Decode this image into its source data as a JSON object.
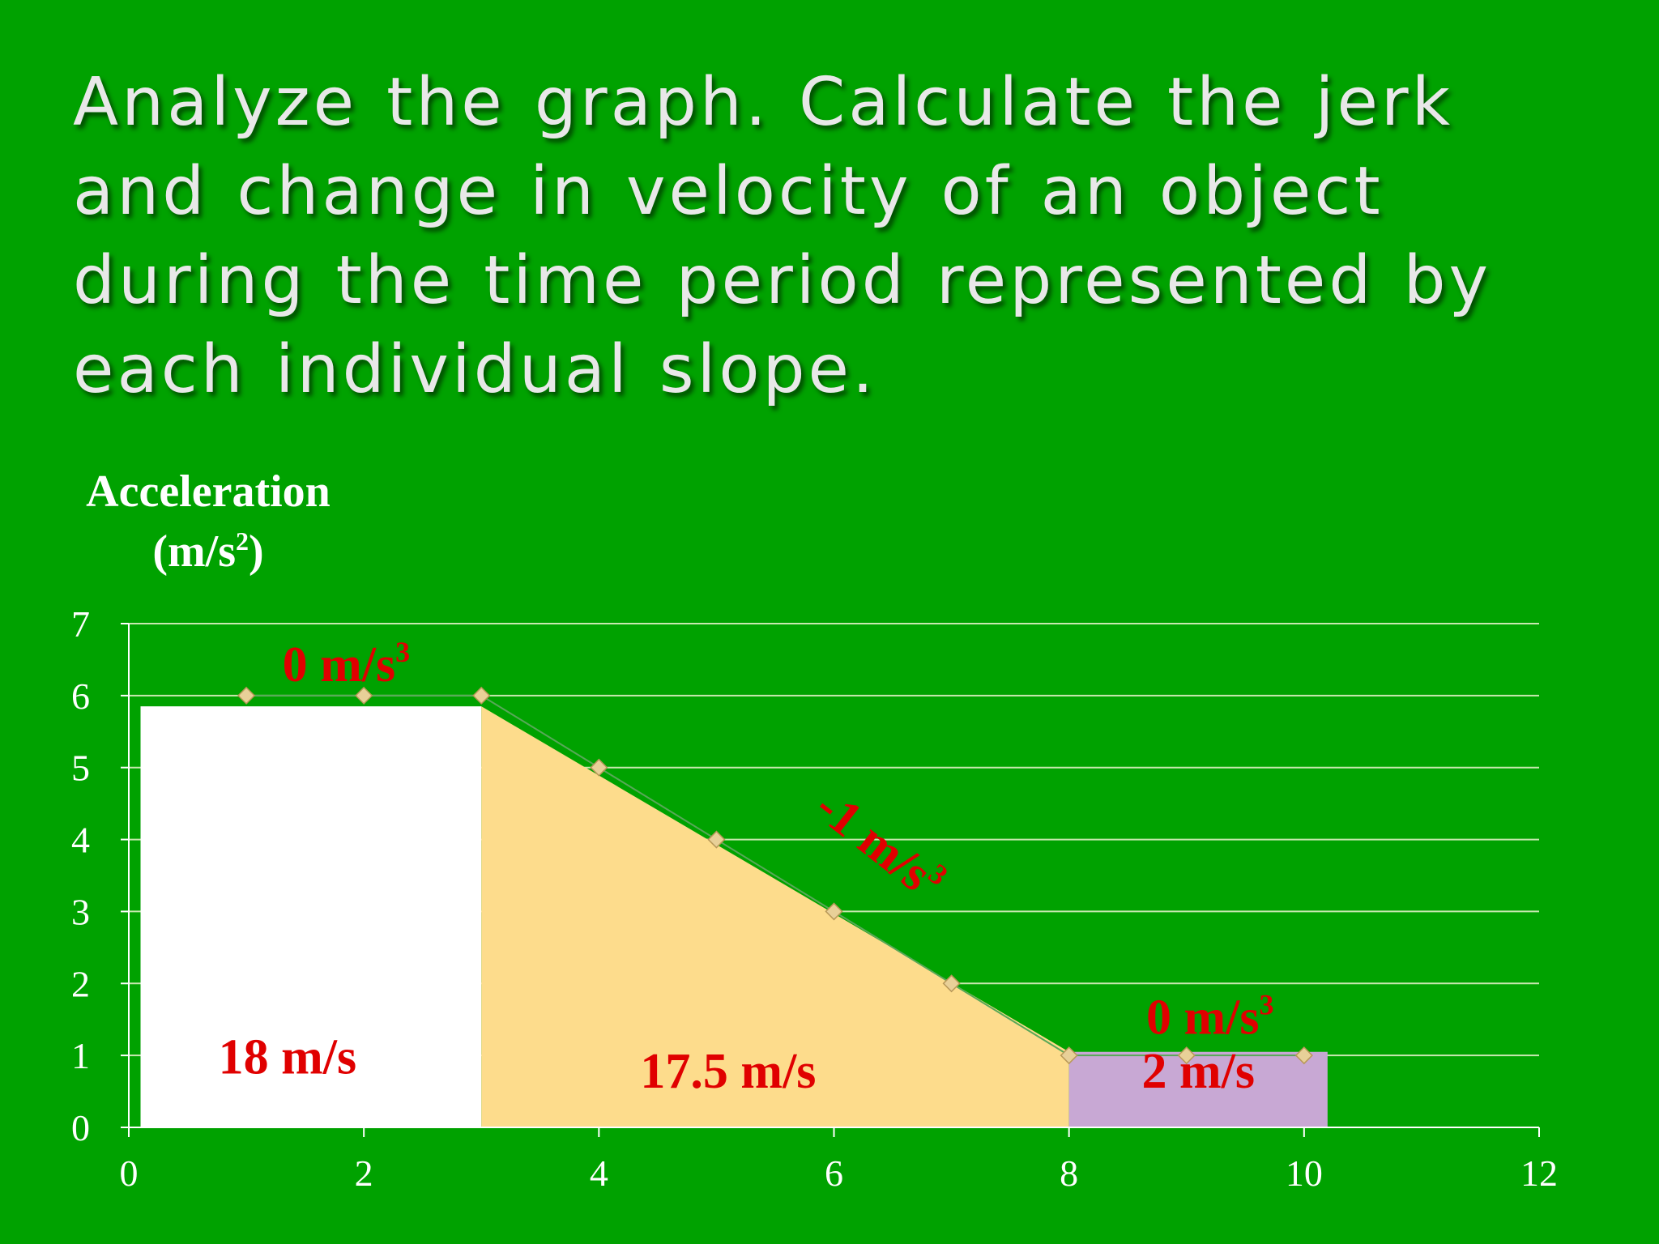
{
  "slide": {
    "title": "Analyze the graph.  Calculate the jerk and change in velocity of an object during the time period represented by each individual slope."
  },
  "chart_data": {
    "type": "line",
    "ylabel": "Acceleration",
    "ylabel_unit": "(m/s",
    "ylabel_unit_sup": "2",
    "ylabel_unit_close": ")",
    "xlim": [
      0,
      12
    ],
    "ylim": [
      0,
      7
    ],
    "x_ticks": [
      0,
      2,
      4,
      6,
      8,
      10,
      12
    ],
    "y_ticks": [
      0,
      1,
      2,
      3,
      4,
      5,
      6,
      7
    ],
    "grid": true,
    "series": [
      {
        "x": [
          1,
          2,
          3,
          4,
          5,
          6,
          7,
          8,
          9,
          10
        ],
        "y": [
          6,
          6,
          6,
          5,
          4,
          3,
          2,
          1,
          1,
          1
        ]
      }
    ],
    "regions": [
      {
        "x_start": 0.1,
        "x_end": 3,
        "y_start": 5.85,
        "y_end": 5.85,
        "color": "#ffffff",
        "area_label": "18 m/s",
        "area_label_pos": [
          1.35,
          0.75
        ]
      },
      {
        "x_start": 3,
        "x_end": 8,
        "y_start": 5.85,
        "y_end": 1.05,
        "color": "#fddc8c",
        "area_label": "17.5 m/s",
        "area_label_pos": [
          5.1,
          0.55
        ]
      },
      {
        "x_start": 8,
        "x_end": 10.2,
        "y_start": 1.05,
        "y_end": 1.05,
        "color": "#c8a8d4",
        "area_label": "2 m/s",
        "area_label_pos": [
          9.1,
          0.55
        ]
      }
    ],
    "annotations": [
      {
        "text": "0 m/s",
        "sup": "3",
        "x": 1.85,
        "y": 6.2,
        "rotate": 0
      },
      {
        "text": "-1 m/s",
        "sup": "3",
        "x": 6.3,
        "y": 3.75,
        "rotate": 38
      },
      {
        "text": "0 m/s",
        "sup": "3",
        "x": 9.2,
        "y": 1.3,
        "rotate": 0
      }
    ],
    "colors": {
      "background": "#00a200",
      "gridline": "#c8e8b0",
      "axis": "#ffffff",
      "marker": "#e8d098",
      "label_red": "#e00000"
    }
  }
}
